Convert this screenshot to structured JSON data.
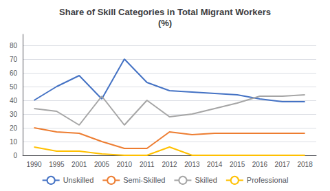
{
  "chart_data": {
    "type": "line",
    "title": "Share of Skill Categories in Total Migrant Workers\n(%)",
    "categories": [
      "1990",
      "1995",
      "2001",
      "2005",
      "2010",
      "2011",
      "2012",
      "2013",
      "2014",
      "2015",
      "2016",
      "2017",
      "2018"
    ],
    "series": [
      {
        "name": "Unskilled",
        "color": "#4472C4",
        "values": [
          40,
          50,
          58,
          41,
          70,
          53,
          47,
          46,
          45,
          44,
          41,
          39,
          39
        ]
      },
      {
        "name": "Semi-Skilled",
        "color": "#ED7D31",
        "values": [
          20,
          17,
          16,
          10,
          5,
          5,
          17,
          15,
          16,
          16,
          16,
          16,
          16
        ]
      },
      {
        "name": "Skilled",
        "color": "#A5A5A5",
        "values": [
          34,
          32,
          22,
          43,
          22,
          40,
          28,
          30,
          34,
          38,
          43,
          43,
          44
        ]
      },
      {
        "name": "Professional",
        "color": "#FFC000",
        "values": [
          6,
          3,
          3,
          1,
          0,
          0,
          6,
          0,
          0,
          0,
          0,
          0,
          0
        ]
      }
    ],
    "ylim": [
      0,
      88
    ],
    "yticks": [
      0,
      10,
      20,
      30,
      40,
      50,
      60,
      70,
      80
    ],
    "grid": true,
    "legend": "bottom"
  }
}
